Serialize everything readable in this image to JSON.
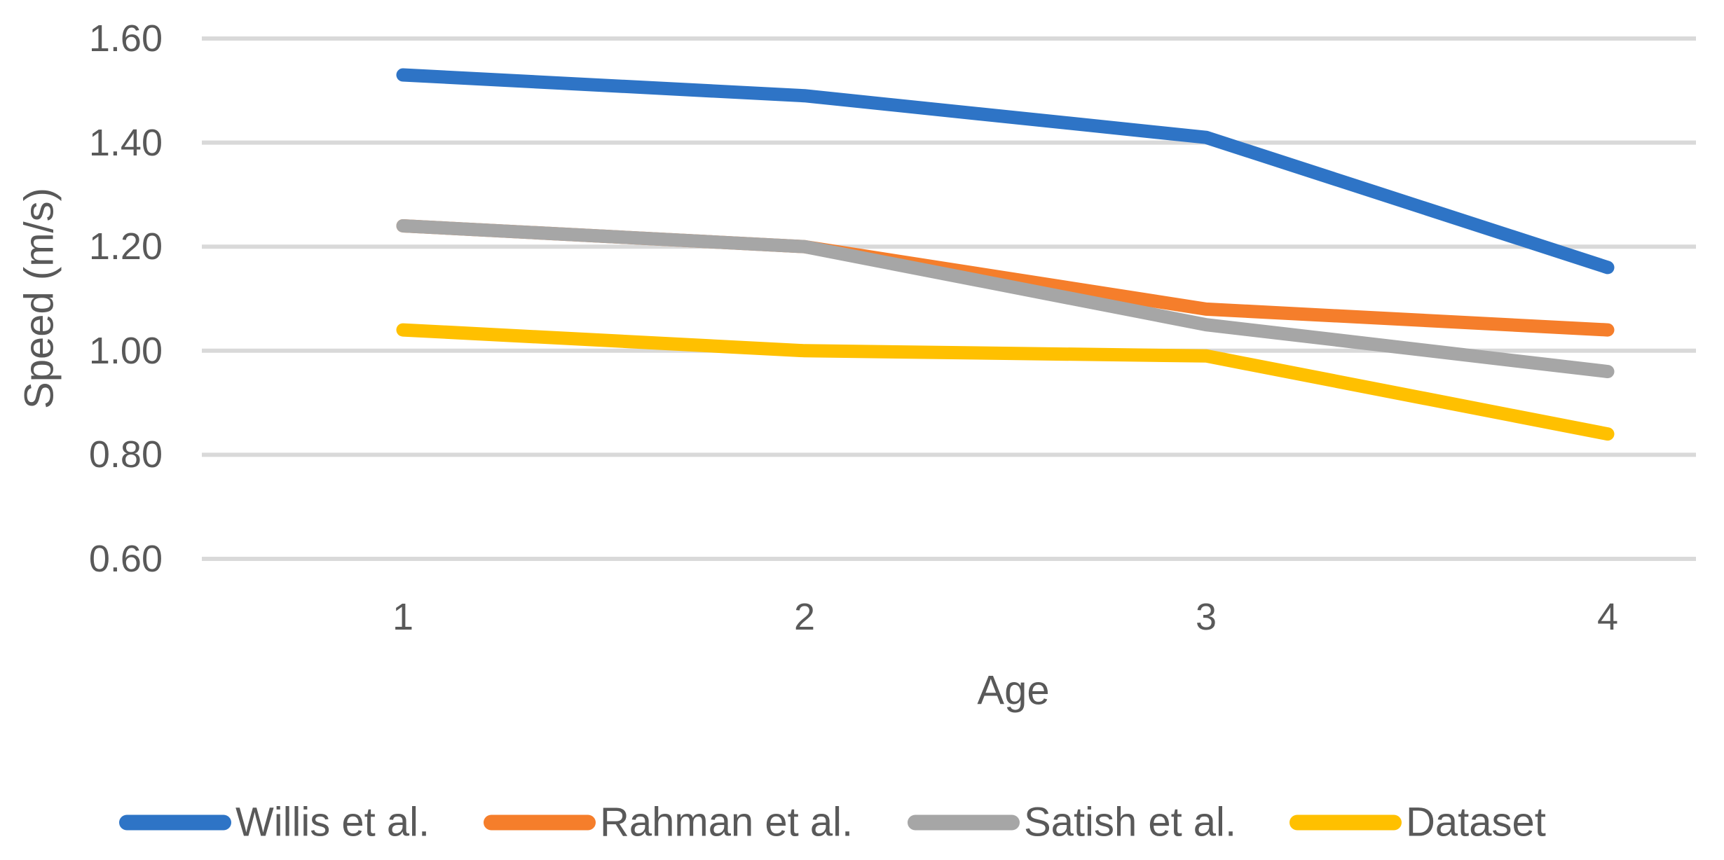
{
  "chart_data": {
    "type": "line",
    "title": "",
    "xlabel": "Age",
    "ylabel": "Speed (m/s)",
    "x": [
      1,
      2,
      3,
      4
    ],
    "xtick_labels": [
      "1",
      "2",
      "3",
      "4"
    ],
    "ytick_labels": [
      "0.60",
      "0.80",
      "1.00",
      "1.20",
      "1.40",
      "1.60"
    ],
    "ylim": [
      0.6,
      1.6
    ],
    "ytick_step": 0.2,
    "grid": "horizontal",
    "legend_position": "bottom",
    "colors": {
      "gridline": "#D9D9D9",
      "text": "#595959",
      "background": "#FFFFFF"
    },
    "series": [
      {
        "name": "Willis et al.",
        "color": "#2E74C6",
        "values": [
          1.53,
          1.49,
          1.41,
          1.16
        ]
      },
      {
        "name": "Rahman et al.",
        "color": "#F57E2B",
        "values": [
          1.24,
          1.2,
          1.08,
          1.04
        ]
      },
      {
        "name": "Satish et al.",
        "color": "#A6A6A6",
        "values": [
          1.24,
          1.2,
          1.05,
          0.96
        ]
      },
      {
        "name": "Dataset",
        "color": "#FFC000",
        "values": [
          1.04,
          1.0,
          0.99,
          0.84
        ]
      }
    ]
  }
}
